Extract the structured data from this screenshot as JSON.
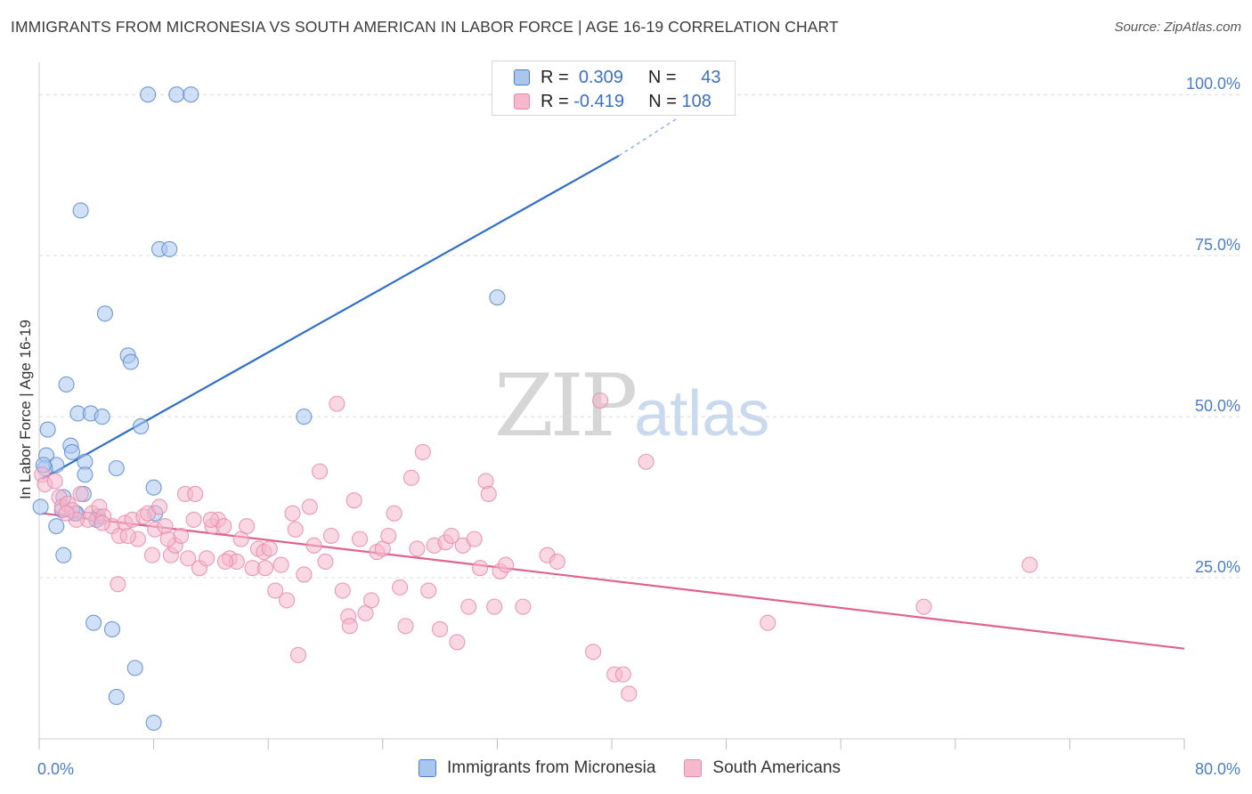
{
  "title": "IMMIGRANTS FROM MICRONESIA VS SOUTH AMERICAN IN LABOR FORCE | AGE 16-19 CORRELATION CHART",
  "source": "Source: ZipAtlas.com",
  "watermark": {
    "zip": "ZIP",
    "atlas": "atlas"
  },
  "colors": {
    "blue": "#4a7dc8",
    "blue_fill": "#a9c6ee",
    "blue_line": "#2f6fc8",
    "pink_fill": "#f5b8cc",
    "pink_line": "#e0628e"
  },
  "legend": {
    "rows": [
      {
        "r_label": "R =",
        "r_value": "0.309",
        "n_label": "N =",
        "n_value": "43"
      },
      {
        "r_label": "R =",
        "r_value": "-0.419",
        "n_label": "N =",
        "n_value": "108"
      }
    ]
  },
  "bottom_legend": [
    "Immigrants from Micronesia",
    "South Americans"
  ],
  "chart_data": {
    "type": "scatter",
    "title": "IMMIGRANTS FROM MICRONESIA VS SOUTH AMERICAN IN LABOR FORCE | AGE 16-19 CORRELATION CHART",
    "xlabel": "",
    "ylabel": "In Labor Force | Age 16-19",
    "xlim": [
      0,
      80
    ],
    "ylim": [
      0,
      105
    ],
    "x_tick_labels": [
      "0.0%",
      "80.0%"
    ],
    "y_ticks": [
      25,
      50,
      75,
      100
    ],
    "y_tick_labels": [
      "25.0%",
      "50.0%",
      "75.0%",
      "100.0%"
    ],
    "grid": "horizontal dashed",
    "legend_position": "top-center",
    "series": [
      {
        "name": "Immigrants from Micronesia",
        "color": "#a9c6ee",
        "trend": {
          "x": [
            0.2,
            40.5
          ],
          "y": [
            40.3,
            90.5
          ],
          "dashed_to": [
            44.5,
            96.2
          ]
        },
        "points": [
          [
            7.6,
            100
          ],
          [
            9.6,
            100
          ],
          [
            10.6,
            100
          ],
          [
            2.9,
            82
          ],
          [
            8.4,
            76
          ],
          [
            9.1,
            76
          ],
          [
            4.6,
            66
          ],
          [
            6.2,
            59.5
          ],
          [
            6.4,
            58.5
          ],
          [
            1.9,
            55
          ],
          [
            0.6,
            48
          ],
          [
            2.7,
            50.5
          ],
          [
            3.6,
            50.5
          ],
          [
            4.4,
            50
          ],
          [
            7.1,
            48.5
          ],
          [
            18.5,
            50
          ],
          [
            32,
            68.5
          ],
          [
            0.5,
            44
          ],
          [
            1.2,
            42.5
          ],
          [
            2.2,
            45.5
          ],
          [
            2.3,
            44.5
          ],
          [
            3.2,
            43
          ],
          [
            5.4,
            42
          ],
          [
            0.4,
            42
          ],
          [
            3.2,
            41
          ],
          [
            8,
            39
          ],
          [
            1.7,
            37.5
          ],
          [
            3.1,
            38
          ],
          [
            0.1,
            36
          ],
          [
            1.6,
            35.5
          ],
          [
            2.5,
            35
          ],
          [
            4.1,
            34.5
          ],
          [
            8.1,
            35
          ],
          [
            1.2,
            33
          ],
          [
            1.7,
            28.5
          ],
          [
            3.8,
            18
          ],
          [
            5.1,
            17
          ],
          [
            6.7,
            11
          ],
          [
            5.4,
            6.5
          ],
          [
            8,
            2.5
          ],
          [
            0.3,
            42.5
          ],
          [
            2.6,
            35
          ],
          [
            4,
            34
          ]
        ]
      },
      {
        "name": "South Americans",
        "color": "#f5b8cc",
        "trend": {
          "x": [
            0.2,
            80
          ],
          "y": [
            35,
            14
          ]
        },
        "points": [
          [
            0.2,
            41
          ],
          [
            0.4,
            39.5
          ],
          [
            1.4,
            37.5
          ],
          [
            1.6,
            36
          ],
          [
            2,
            36.5
          ],
          [
            2.3,
            35.5
          ],
          [
            2.9,
            38
          ],
          [
            3.7,
            35
          ],
          [
            4.2,
            36
          ],
          [
            4.5,
            34.5
          ],
          [
            5.1,
            33
          ],
          [
            5.6,
            31.5
          ],
          [
            6,
            33.5
          ],
          [
            6.5,
            34
          ],
          [
            6.9,
            31
          ],
          [
            7.3,
            34.5
          ],
          [
            7.6,
            35
          ],
          [
            8.1,
            32.5
          ],
          [
            8.4,
            36
          ],
          [
            8.8,
            33
          ],
          [
            9.2,
            28.5
          ],
          [
            9.5,
            30
          ],
          [
            9.9,
            31.5
          ],
          [
            10.2,
            38
          ],
          [
            10.4,
            28
          ],
          [
            10.9,
            38
          ],
          [
            11.2,
            26.5
          ],
          [
            11.7,
            28
          ],
          [
            12.1,
            33
          ],
          [
            12.5,
            34
          ],
          [
            12.9,
            33
          ],
          [
            13.3,
            28
          ],
          [
            13.8,
            27.5
          ],
          [
            14.1,
            31
          ],
          [
            14.5,
            33
          ],
          [
            14.9,
            26.5
          ],
          [
            15.3,
            29.5
          ],
          [
            15.7,
            29
          ],
          [
            16.1,
            29.5
          ],
          [
            16.5,
            23
          ],
          [
            16.9,
            27
          ],
          [
            17.3,
            21.5
          ],
          [
            17.7,
            35
          ],
          [
            18.1,
            13
          ],
          [
            18.5,
            25.5
          ],
          [
            18.9,
            36
          ],
          [
            19.2,
            30
          ],
          [
            19.6,
            41.5
          ],
          [
            20,
            27.5
          ],
          [
            20.4,
            31.5
          ],
          [
            20.8,
            52
          ],
          [
            21.2,
            23
          ],
          [
            21.6,
            19
          ],
          [
            22,
            37
          ],
          [
            22.4,
            31
          ],
          [
            22.8,
            19.5
          ],
          [
            23.2,
            21.5
          ],
          [
            23.6,
            29
          ],
          [
            24,
            29.5
          ],
          [
            24.4,
            31.5
          ],
          [
            24.8,
            35
          ],
          [
            25.2,
            23.5
          ],
          [
            25.6,
            17.5
          ],
          [
            26,
            40.5
          ],
          [
            26.4,
            29.5
          ],
          [
            26.8,
            44.5
          ],
          [
            27.2,
            23
          ],
          [
            27.6,
            30
          ],
          [
            28,
            17
          ],
          [
            28.4,
            30.5
          ],
          [
            28.8,
            31.5
          ],
          [
            29.2,
            15
          ],
          [
            29.6,
            30
          ],
          [
            30,
            20.5
          ],
          [
            30.4,
            31
          ],
          [
            30.8,
            26.5
          ],
          [
            31.2,
            40
          ],
          [
            31.4,
            38
          ],
          [
            31.8,
            20.5
          ],
          [
            32.2,
            26
          ],
          [
            32.6,
            27
          ],
          [
            33.8,
            20.5
          ],
          [
            35.5,
            28.5
          ],
          [
            36.2,
            27.5
          ],
          [
            38.7,
            13.5
          ],
          [
            39.2,
            52.5
          ],
          [
            40.2,
            10
          ],
          [
            40.8,
            10
          ],
          [
            41.2,
            7
          ],
          [
            42.4,
            43
          ],
          [
            50.9,
            18
          ],
          [
            61.8,
            20.5
          ],
          [
            69.2,
            27
          ],
          [
            21.7,
            17.5
          ],
          [
            12,
            34
          ],
          [
            9,
            31
          ],
          [
            5.5,
            24
          ],
          [
            3.4,
            34
          ],
          [
            15.8,
            26.5
          ],
          [
            6.2,
            31.5
          ],
          [
            7.9,
            28.5
          ],
          [
            1.1,
            40
          ],
          [
            13,
            27.5
          ],
          [
            17.9,
            32.5
          ],
          [
            2.6,
            34
          ],
          [
            1.9,
            35
          ],
          [
            4.4,
            33.5
          ],
          [
            10.8,
            34
          ]
        ]
      }
    ]
  }
}
